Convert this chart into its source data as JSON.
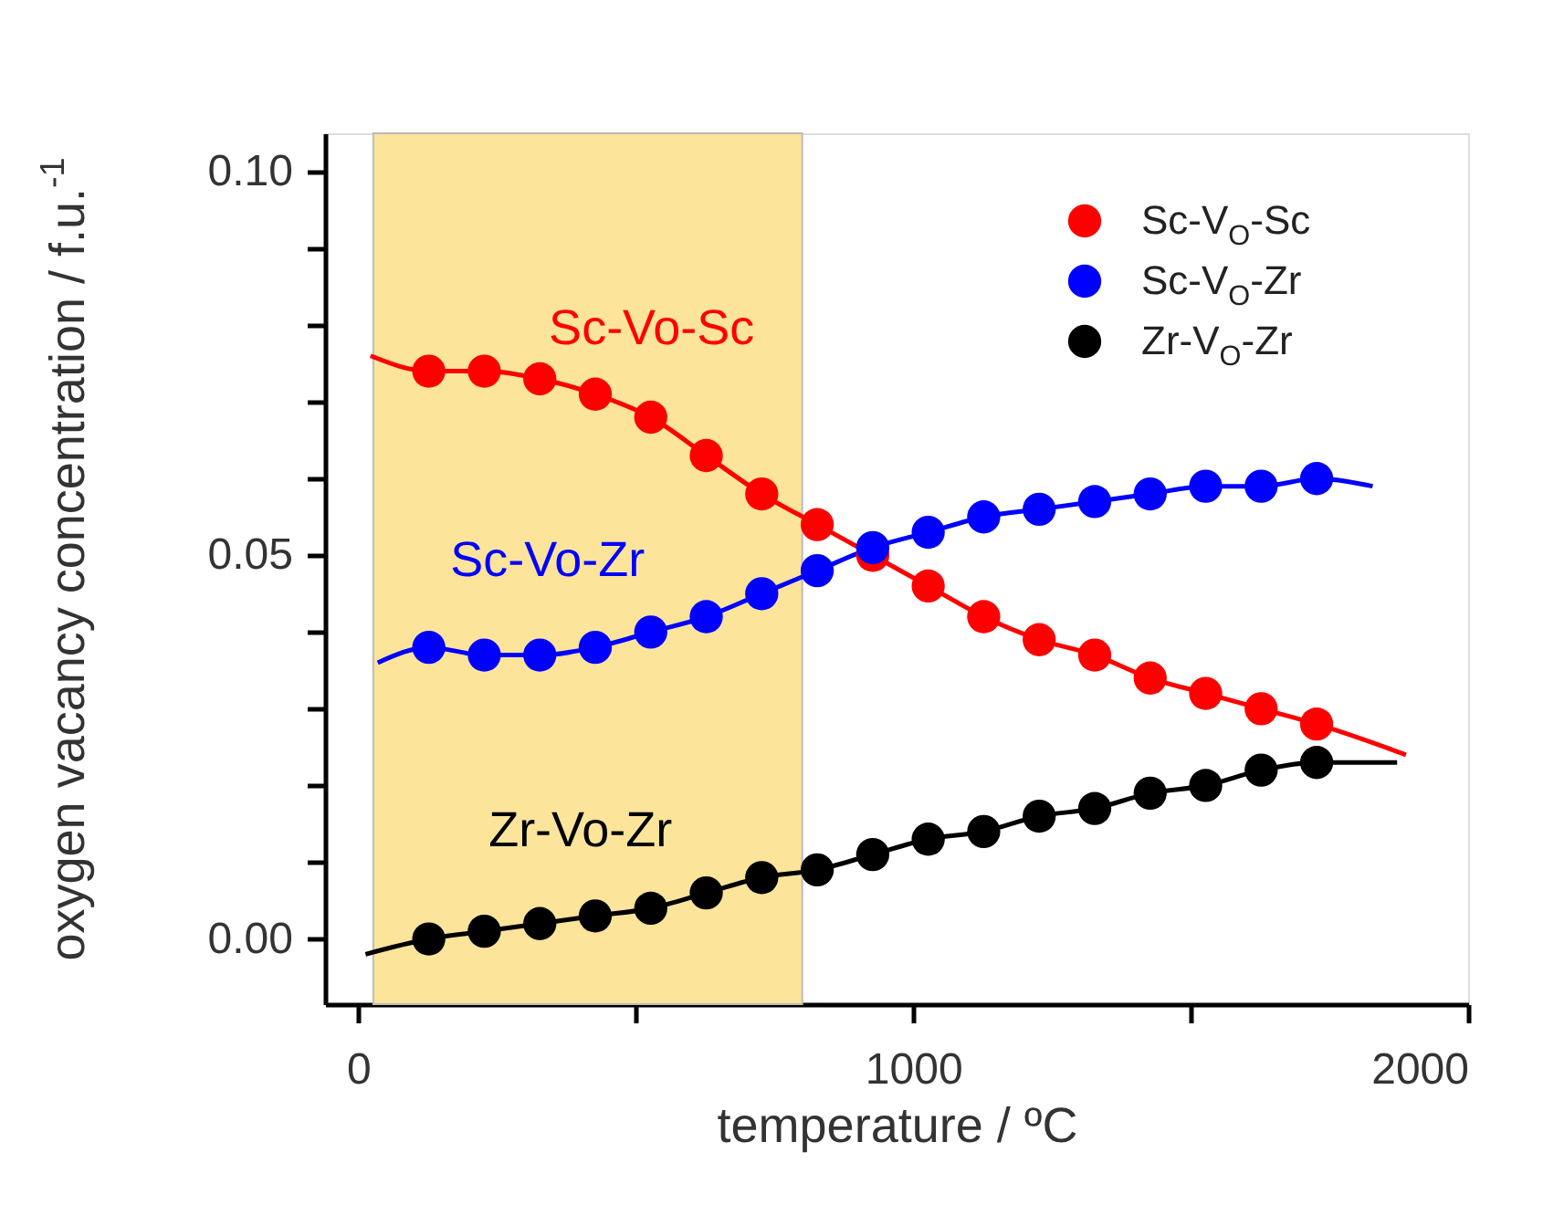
{
  "chart_data": {
    "type": "scatter",
    "xlabel": "temperature / ºC",
    "ylabel": "oxygen vacancy concentration / f.u.$^{-1}$",
    "xlim": [
      -60,
      2000
    ],
    "ylim": [
      -0.0085,
      0.105
    ],
    "xticks": [
      0,
      {
        "value": 500,
        "label": null
      },
      1000,
      {
        "value": 1500,
        "label": null
      },
      2000
    ],
    "yticks": [
      {
        "value": 0,
        "label": "0.00"
      },
      {
        "value": 0.01,
        "label": null
      },
      {
        "value": 0.02,
        "label": null
      },
      {
        "value": 0.03,
        "label": null
      },
      {
        "value": 0.04,
        "label": null
      },
      {
        "value": 0.05,
        "label": "0.05"
      },
      {
        "value": 0.06,
        "label": null
      },
      {
        "value": 0.07,
        "label": null
      },
      {
        "value": 0.08,
        "label": null
      },
      {
        "value": 0.09,
        "label": null
      },
      {
        "value": 0.1,
        "label": "0.10"
      }
    ],
    "x": [
      127,
      227,
      327,
      427,
      527,
      627,
      727,
      827,
      927,
      1027,
      1127,
      1227,
      1327,
      1427,
      1527,
      1627,
      1727
    ],
    "marker": "circle",
    "legend": "top right",
    "bands": [
      {
        "axis": "x",
        "from": 27,
        "to": 800,
        "color": "#fde49b"
      }
    ],
    "series": [
      {
        "type": "line",
        "marker": "none",
        "color": "#ff0000",
        "x": [
          22,
          127,
          227,
          327,
          427,
          527,
          627,
          727,
          827,
          927,
          1027,
          1127,
          1227,
          1327,
          1427,
          1527,
          1627,
          1727,
          1888
        ],
        "values": [
          0.076,
          0.074,
          0.074,
          0.073,
          0.071,
          0.068,
          0.063,
          0.058,
          0.054,
          0.05,
          0.046,
          0.042,
          0.039,
          0.037,
          0.034,
          0.032,
          0.03,
          0.028,
          0.024
        ]
      },
      {
        "type": "line",
        "marker": "none",
        "color": "#0000ff",
        "x": [
          35,
          127,
          227,
          327,
          427,
          527,
          627,
          727,
          827,
          927,
          1027,
          1127,
          1227,
          1327,
          1427,
          1527,
          1627,
          1727,
          1828
        ],
        "values": [
          0.036,
          0.038,
          0.037,
          0.037,
          0.038,
          0.04,
          0.042,
          0.045,
          0.048,
          0.051,
          0.053,
          0.055,
          0.056,
          0.057,
          0.058,
          0.059,
          0.059,
          0.06,
          0.059
        ]
      },
      {
        "type": "line",
        "marker": "none",
        "color": "#000000",
        "x": [
          13,
          127,
          227,
          327,
          427,
          527,
          627,
          727,
          827,
          927,
          1027,
          1127,
          1227,
          1327,
          1427,
          1527,
          1627,
          1727,
          1872
        ],
        "values": [
          -0.002,
          0.0,
          0.001,
          0.002,
          0.003,
          0.004,
          0.006,
          0.008,
          0.009,
          0.011,
          0.013,
          0.014,
          0.016,
          0.017,
          0.019,
          0.02,
          0.022,
          0.023,
          0.023
        ]
      },
      {
        "name": "Sc-V$_{O}$-Sc",
        "color": "#ff0000",
        "values": [
          0.074,
          0.074,
          0.073,
          0.071,
          0.068,
          0.063,
          0.058,
          0.054,
          0.05,
          0.046,
          0.042,
          0.039,
          0.037,
          0.034,
          0.032,
          0.03,
          0.028
        ]
      },
      {
        "name": "Sc-V$_{O}$-Zr",
        "color": "#0000ff",
        "values": [
          0.038,
          0.037,
          0.037,
          0.038,
          0.04,
          0.042,
          0.045,
          0.048,
          0.051,
          0.053,
          0.055,
          0.056,
          0.057,
          0.058,
          0.059,
          0.059,
          0.06
        ]
      },
      {
        "name": "Zr-V$_{O}$-Zr",
        "color": "#000000",
        "values": [
          0.0,
          0.001,
          0.002,
          0.003,
          0.004,
          0.006,
          0.008,
          0.009,
          0.011,
          0.013,
          0.014,
          0.016,
          0.017,
          0.019,
          0.02,
          0.022,
          0.023
        ]
      }
    ],
    "annotations": [
      "Sc-Vo-Sc",
      "Sc-Vo-Zr",
      "Zr-Vo-Zr"
    ]
  }
}
